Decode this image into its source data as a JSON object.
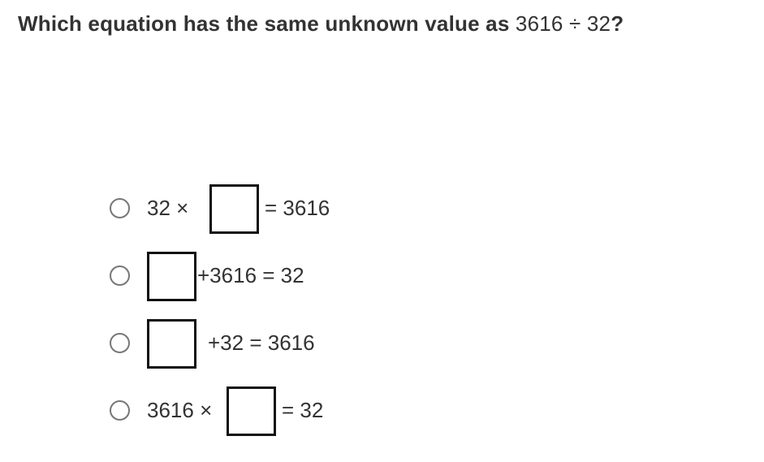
{
  "question": {
    "prefix": "Which equation has the same unknown value as ",
    "expression": "3616 ÷ 32",
    "suffix": "?"
  },
  "options": [
    {
      "before": "32 ×",
      "after": "= 3616",
      "selected": false
    },
    {
      "before": "",
      "after": "+3616 = 32",
      "selected": false
    },
    {
      "before": "",
      "after": "+32 = 3616",
      "selected": false
    },
    {
      "before": "3616 ×",
      "after": "= 32",
      "selected": false
    }
  ]
}
